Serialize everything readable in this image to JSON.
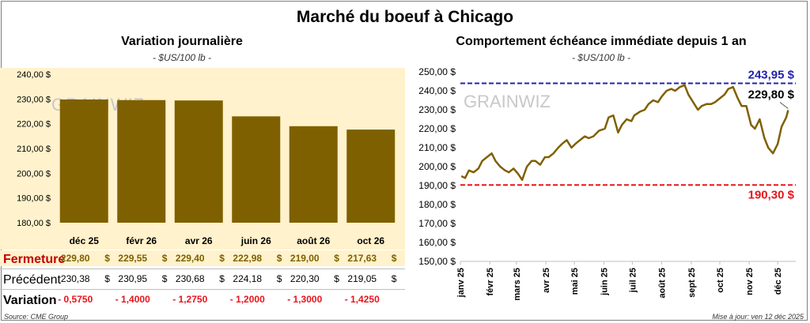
{
  "title": "Marché du boeuf à Chicago",
  "left": {
    "subtitle": "Variation journalière",
    "unit": "- $US/100 lb -",
    "watermark": "GRAINWIZ",
    "bar_color": "#7f6000",
    "row_labels": {
      "close": "Fermeture",
      "prev": "Précédent",
      "var": "Variation"
    },
    "close_values": [
      "229,80",
      "229,55",
      "229,40",
      "222,98",
      "219,00",
      "217,63"
    ],
    "prev_values": [
      "230,38",
      "230,95",
      "230,68",
      "224,18",
      "220,30",
      "219,05"
    ],
    "var_values": [
      "- 0,5750",
      "- 1,4000",
      "- 1,2750",
      "- 1,2000",
      "- 1,3000",
      "- 1,4250"
    ],
    "currency": "$",
    "source": "Source: CME Group"
  },
  "right": {
    "subtitle": "Comportement échéance immédiate depuis 1 an",
    "unit": "- $US/100 lb -",
    "watermark": "GRAINWIZ",
    "high_label": "243,95 $",
    "low_label": "190,30 $",
    "last_label": "229,80 $",
    "line_color": "#7f6000",
    "high_color": "#2222aa",
    "low_color": "#e8141c",
    "update": "Mise à jour: ven 12 déc 2025"
  },
  "chart_data": [
    {
      "type": "bar",
      "title": "Variation journalière",
      "categories": [
        "déc 25",
        "févr 26",
        "avr 26",
        "juin 26",
        "août 26",
        "oct 26"
      ],
      "values": [
        229.8,
        229.55,
        229.4,
        222.98,
        219.0,
        217.63
      ],
      "ylim": [
        180,
        240
      ],
      "yticks": [
        "180,00 $",
        "190,00 $",
        "200,00 $",
        "210,00 $",
        "220,00 $",
        "230,00 $",
        "240,00 $"
      ],
      "ytick_values": [
        180,
        190,
        200,
        210,
        220,
        230,
        240
      ],
      "grid": false
    },
    {
      "type": "line",
      "title": "Comportement échéance immédiate depuis 1 an",
      "ylim": [
        150,
        250
      ],
      "yticks": [
        "150,00 $",
        "160,00 $",
        "170,00 $",
        "180,00 $",
        "190,00 $",
        "200,00 $",
        "210,00 $",
        "220,00 $",
        "230,00 $",
        "240,00 $",
        "250,00 $"
      ],
      "ytick_values": [
        150,
        160,
        170,
        180,
        190,
        200,
        210,
        220,
        230,
        240,
        250
      ],
      "xticks": [
        "janv 25",
        "févr 25",
        "mars 25",
        "avr 25",
        "mai 25",
        "juin 25",
        "juil 25",
        "août 25",
        "sept 25",
        "oct 25",
        "nov 25",
        "déc 25"
      ],
      "x": [
        "2025-01-02",
        "2025-01-06",
        "2025-01-10",
        "2025-01-15",
        "2025-01-20",
        "2025-01-24",
        "2025-01-29",
        "2025-02-03",
        "2025-02-07",
        "2025-02-12",
        "2025-02-17",
        "2025-02-21",
        "2025-02-26",
        "2025-03-03",
        "2025-03-07",
        "2025-03-12",
        "2025-03-17",
        "2025-03-21",
        "2025-03-26",
        "2025-03-31",
        "2025-04-04",
        "2025-04-09",
        "2025-04-14",
        "2025-04-18",
        "2025-04-23",
        "2025-04-28",
        "2025-05-02",
        "2025-05-07",
        "2025-05-12",
        "2025-05-16",
        "2025-05-21",
        "2025-05-27",
        "2025-06-02",
        "2025-06-06",
        "2025-06-11",
        "2025-06-16",
        "2025-06-20",
        "2025-06-25",
        "2025-06-30",
        "2025-07-03",
        "2025-07-09",
        "2025-07-14",
        "2025-07-18",
        "2025-07-23",
        "2025-07-28",
        "2025-08-01",
        "2025-08-06",
        "2025-08-11",
        "2025-08-15",
        "2025-08-20",
        "2025-08-25",
        "2025-08-29",
        "2025-09-03",
        "2025-09-08",
        "2025-09-12",
        "2025-09-17",
        "2025-09-22",
        "2025-09-26",
        "2025-10-01",
        "2025-10-06",
        "2025-10-10",
        "2025-10-15",
        "2025-10-20",
        "2025-10-24",
        "2025-10-29",
        "2025-11-03",
        "2025-11-07",
        "2025-11-12",
        "2025-11-17",
        "2025-11-21",
        "2025-11-26",
        "2025-12-01",
        "2025-12-05",
        "2025-12-10",
        "2025-12-12"
      ],
      "values": [
        195,
        194,
        198,
        197,
        199,
        203,
        205,
        207,
        203,
        200,
        198,
        197,
        199,
        196,
        193,
        200,
        203,
        203,
        201,
        205,
        205,
        207,
        210,
        212,
        214,
        210,
        212,
        214,
        216,
        215,
        216,
        219,
        220,
        226,
        227,
        218,
        222,
        225,
        224,
        227,
        229,
        230,
        233,
        235,
        234,
        237,
        240,
        241,
        240,
        242,
        243,
        238,
        234,
        230,
        232,
        233,
        233,
        234,
        236,
        238,
        241,
        242,
        236,
        232,
        232,
        222,
        220,
        225,
        215,
        210,
        207,
        212,
        221,
        226,
        229.8
      ],
      "series_name": "",
      "high": 243.95,
      "low": 190.3,
      "last": 229.8,
      "grid": false
    }
  ]
}
